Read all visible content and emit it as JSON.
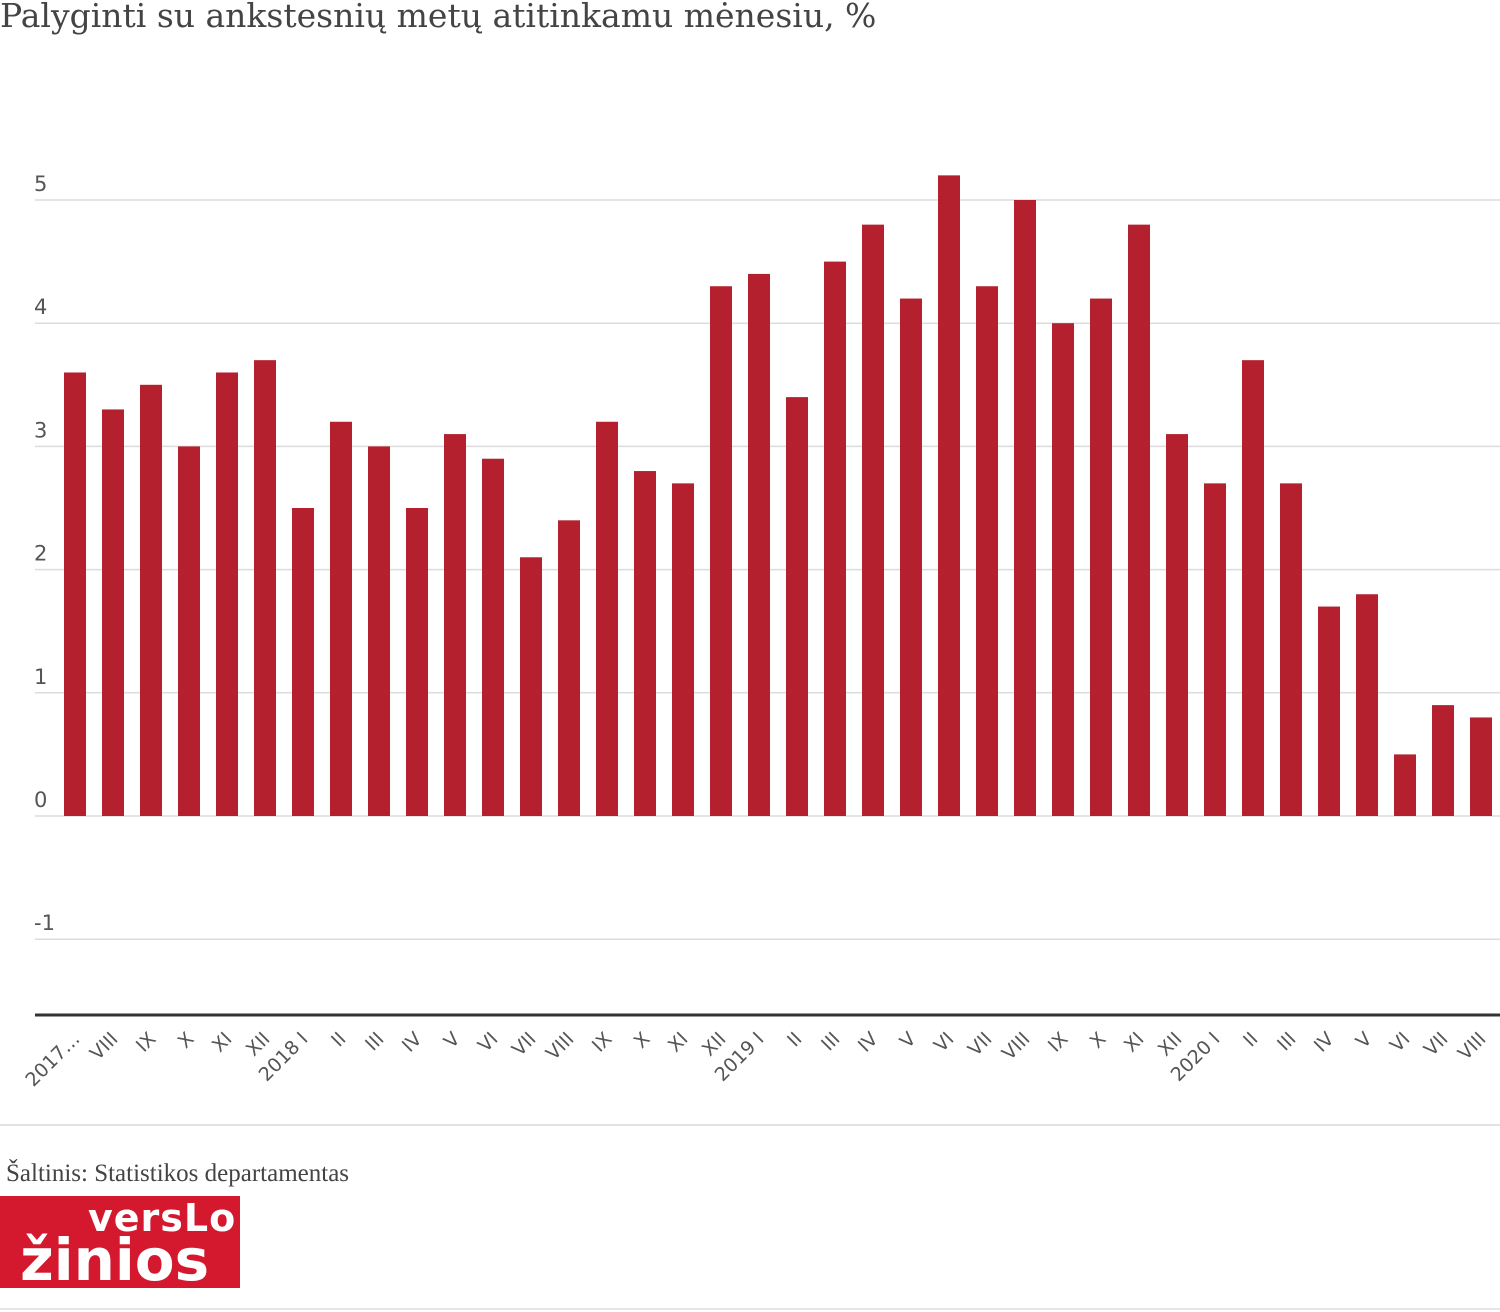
{
  "chart_data": {
    "type": "bar",
    "title": "Palyginti su ankstesnių metų atitinkamu mėnesiu, %",
    "xlabel": "",
    "ylabel": "",
    "ylim": [
      -1,
      5
    ],
    "yticks": [
      "5",
      "4",
      "3",
      "2",
      "1",
      "0",
      "-1"
    ],
    "grid": true,
    "categories": [
      "2017…",
      "VIII",
      "IX",
      "X",
      "XI",
      "XII",
      "2018 I",
      "II",
      "III",
      "IV",
      "V",
      "VI",
      "VII",
      "VIII",
      "IX",
      "X",
      "XI",
      "XII",
      "2019 I",
      "II",
      "III",
      "IV",
      "V",
      "VI",
      "VII",
      "VIII",
      "IX",
      "X",
      "XI",
      "XII",
      "2020 I",
      "II",
      "III",
      "IV",
      "V",
      "VI",
      "VII",
      "VIII"
    ],
    "values": [
      3.6,
      3.3,
      3.5,
      3.0,
      3.6,
      3.7,
      2.5,
      3.2,
      3.0,
      2.5,
      3.1,
      2.9,
      2.1,
      2.4,
      3.2,
      2.8,
      2.7,
      4.3,
      4.4,
      3.4,
      4.5,
      4.8,
      4.2,
      5.2,
      4.3,
      5.0,
      4.0,
      4.2,
      4.8,
      3.1,
      2.7,
      3.7,
      2.7,
      1.7,
      1.8,
      0.5,
      0.9,
      0.8
    ],
    "bar_color": "#b5202e"
  },
  "source": "Šaltinis: Statistikos departamentas",
  "logo": {
    "line1": "versLo",
    "line2": "žinios"
  }
}
